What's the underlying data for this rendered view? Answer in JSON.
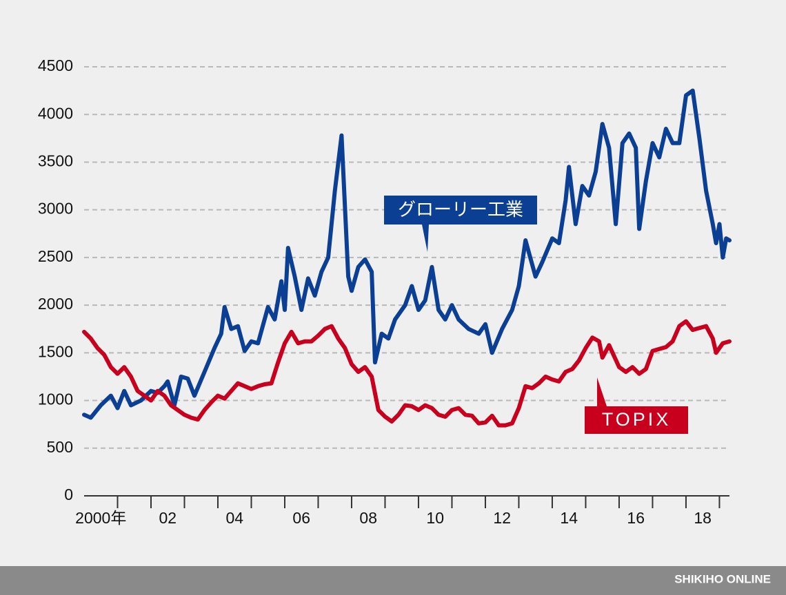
{
  "chart_data": {
    "type": "line",
    "xlim": [
      2000,
      2019.3
    ],
    "xticks": [
      {
        "value": 2000.5,
        "label": "2000年"
      },
      {
        "value": 2002.5,
        "label": "02"
      },
      {
        "value": 2004.5,
        "label": "04"
      },
      {
        "value": 2006.5,
        "label": "06"
      },
      {
        "value": 2008.5,
        "label": "08"
      },
      {
        "value": 2010.5,
        "label": "10"
      },
      {
        "value": 2012.5,
        "label": "12"
      },
      {
        "value": 2014.5,
        "label": "14"
      },
      {
        "value": 2016.5,
        "label": "16"
      },
      {
        "value": 2018.5,
        "label": "18"
      }
    ],
    "xtick_marks": [
      2001,
      2002,
      2003,
      2004,
      2005,
      2006,
      2007,
      2008,
      2009,
      2010,
      2011,
      2012,
      2013,
      2014,
      2015,
      2016,
      2017,
      2018,
      2019
    ],
    "ylim": [
      0,
      4500
    ],
    "yticks": [
      0,
      500,
      1000,
      1500,
      2000,
      2500,
      3000,
      3500,
      4000,
      4500
    ],
    "grid": true,
    "series": [
      {
        "name": "グローリー工業",
        "color": "#0b3f94",
        "x": [
          2000.0,
          2000.2,
          2000.5,
          2000.8,
          2001.0,
          2001.2,
          2001.4,
          2001.7,
          2002.0,
          2002.2,
          2002.4,
          2002.5,
          2002.7,
          2002.9,
          2003.1,
          2003.3,
          2003.6,
          2003.9,
          2004.1,
          2004.2,
          2004.4,
          2004.6,
          2004.8,
          2005.0,
          2005.2,
          2005.5,
          2005.7,
          2005.9,
          2006.0,
          2006.1,
          2006.3,
          2006.5,
          2006.7,
          2006.9,
          2007.1,
          2007.3,
          2007.5,
          2007.7,
          2007.9,
          2008.0,
          2008.2,
          2008.4,
          2008.6,
          2008.7,
          2008.9,
          2009.1,
          2009.3,
          2009.6,
          2009.8,
          2010.0,
          2010.2,
          2010.4,
          2010.6,
          2010.8,
          2011.0,
          2011.2,
          2011.5,
          2011.8,
          2012.0,
          2012.2,
          2012.5,
          2012.8,
          2013.0,
          2013.2,
          2013.5,
          2013.7,
          2014.0,
          2014.2,
          2014.4,
          2014.5,
          2014.7,
          2014.9,
          2015.1,
          2015.3,
          2015.5,
          2015.7,
          2015.9,
          2016.1,
          2016.3,
          2016.5,
          2016.6,
          2016.8,
          2017.0,
          2017.2,
          2017.4,
          2017.6,
          2017.8,
          2018.0,
          2018.2,
          2018.4,
          2018.6,
          2018.8,
          2018.9,
          2019.0,
          2019.1,
          2019.2,
          2019.3
        ],
        "values": [
          850,
          820,
          950,
          1050,
          920,
          1100,
          950,
          1000,
          1100,
          1080,
          1150,
          1200,
          950,
          1250,
          1230,
          1050,
          1300,
          1550,
          1700,
          1980,
          1750,
          1780,
          1520,
          1620,
          1600,
          1980,
          1850,
          2250,
          1950,
          2600,
          2300,
          1950,
          2280,
          2100,
          2350,
          2500,
          3200,
          3780,
          2300,
          2150,
          2400,
          2480,
          2350,
          1400,
          1700,
          1650,
          1850,
          2000,
          2200,
          1950,
          2050,
          2400,
          1950,
          1850,
          2000,
          1850,
          1750,
          1700,
          1800,
          1500,
          1750,
          1950,
          2200,
          2680,
          2300,
          2450,
          2700,
          2650,
          3100,
          3450,
          2850,
          3250,
          3150,
          3400,
          3900,
          3650,
          2850,
          3700,
          3800,
          3650,
          2800,
          3300,
          3700,
          3550,
          3850,
          3700,
          3700,
          4200,
          4250,
          3750,
          3200,
          2850,
          2650,
          2850,
          2500,
          2700,
          2680
        ]
      },
      {
        "name": "TOPIX",
        "color": "#c8001e",
        "x": [
          2000.0,
          2000.2,
          2000.4,
          2000.6,
          2000.8,
          2001.0,
          2001.2,
          2001.4,
          2001.6,
          2001.8,
          2002.0,
          2002.2,
          2002.4,
          2002.6,
          2002.8,
          2003.0,
          2003.2,
          2003.4,
          2003.6,
          2003.8,
          2004.0,
          2004.2,
          2004.4,
          2004.6,
          2004.8,
          2005.0,
          2005.2,
          2005.4,
          2005.6,
          2005.8,
          2006.0,
          2006.2,
          2006.4,
          2006.6,
          2006.8,
          2007.0,
          2007.2,
          2007.4,
          2007.6,
          2007.8,
          2008.0,
          2008.2,
          2008.4,
          2008.6,
          2008.8,
          2009.0,
          2009.2,
          2009.4,
          2009.6,
          2009.8,
          2010.0,
          2010.2,
          2010.4,
          2010.6,
          2010.8,
          2011.0,
          2011.2,
          2011.4,
          2011.6,
          2011.8,
          2012.0,
          2012.2,
          2012.4,
          2012.6,
          2012.8,
          2013.0,
          2013.2,
          2013.4,
          2013.6,
          2013.8,
          2014.0,
          2014.2,
          2014.4,
          2014.6,
          2014.8,
          2015.0,
          2015.2,
          2015.4,
          2015.5,
          2015.7,
          2016.0,
          2016.2,
          2016.4,
          2016.6,
          2016.8,
          2017.0,
          2017.2,
          2017.4,
          2017.6,
          2017.8,
          2018.0,
          2018.2,
          2018.4,
          2018.6,
          2018.8,
          2018.9,
          2019.1,
          2019.3
        ],
        "values": [
          1720,
          1650,
          1550,
          1480,
          1350,
          1280,
          1350,
          1250,
          1100,
          1050,
          1000,
          1100,
          1050,
          950,
          900,
          850,
          820,
          800,
          900,
          980,
          1050,
          1020,
          1100,
          1180,
          1150,
          1120,
          1150,
          1170,
          1180,
          1400,
          1600,
          1720,
          1600,
          1620,
          1620,
          1680,
          1750,
          1780,
          1650,
          1550,
          1380,
          1300,
          1350,
          1250,
          900,
          830,
          780,
          850,
          950,
          940,
          900,
          950,
          920,
          850,
          830,
          900,
          920,
          850,
          840,
          760,
          770,
          840,
          740,
          740,
          760,
          920,
          1150,
          1130,
          1180,
          1250,
          1220,
          1200,
          1300,
          1330,
          1420,
          1550,
          1660,
          1620,
          1450,
          1580,
          1350,
          1300,
          1350,
          1280,
          1330,
          1520,
          1540,
          1560,
          1620,
          1780,
          1830,
          1740,
          1760,
          1780,
          1650,
          1500,
          1600,
          1620
        ]
      }
    ]
  },
  "footer": "SHIKIHO ONLINE"
}
